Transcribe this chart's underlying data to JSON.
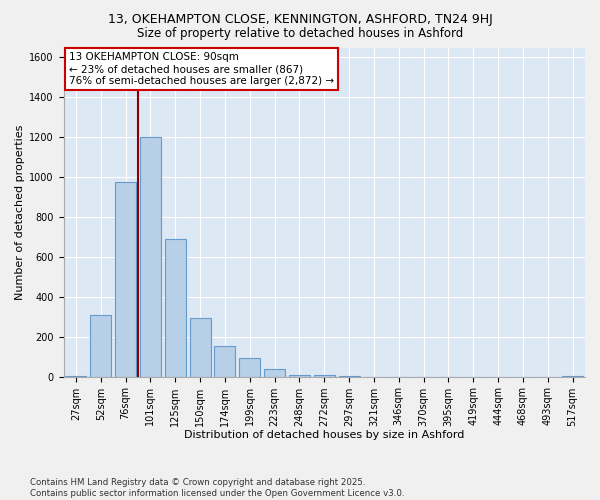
{
  "title1": "13, OKEHAMPTON CLOSE, KENNINGTON, ASHFORD, TN24 9HJ",
  "title2": "Size of property relative to detached houses in Ashford",
  "xlabel": "Distribution of detached houses by size in Ashford",
  "ylabel": "Number of detached properties",
  "categories": [
    "27sqm",
    "52sqm",
    "76sqm",
    "101sqm",
    "125sqm",
    "150sqm",
    "174sqm",
    "199sqm",
    "223sqm",
    "248sqm",
    "272sqm",
    "297sqm",
    "321sqm",
    "346sqm",
    "370sqm",
    "395sqm",
    "419sqm",
    "444sqm",
    "468sqm",
    "493sqm",
    "517sqm"
  ],
  "values": [
    5,
    310,
    975,
    1200,
    690,
    295,
    155,
    95,
    40,
    10,
    8,
    2,
    0,
    0,
    0,
    0,
    0,
    0,
    0,
    0,
    2
  ],
  "bar_color": "#b8cfe8",
  "bar_edge_color": "#6699cc",
  "vline_x_index": 2.48,
  "vline_color": "#8b0000",
  "annotation_text": "13 OKEHAMPTON CLOSE: 90sqm\n← 23% of detached houses are smaller (867)\n76% of semi-detached houses are larger (2,872) →",
  "annotation_box_color": "#ffffff",
  "annotation_box_edge": "#cc0000",
  "ylim": [
    0,
    1650
  ],
  "yticks": [
    0,
    200,
    400,
    600,
    800,
    1000,
    1200,
    1400,
    1600
  ],
  "footer": "Contains HM Land Registry data © Crown copyright and database right 2025.\nContains public sector information licensed under the Open Government Licence v3.0.",
  "bg_color": "#dde8f5",
  "grid_color": "#ffffff",
  "title1_fontsize": 9,
  "title2_fontsize": 8.5,
  "tick_fontsize": 7,
  "label_fontsize": 8,
  "annot_fontsize": 7.5
}
